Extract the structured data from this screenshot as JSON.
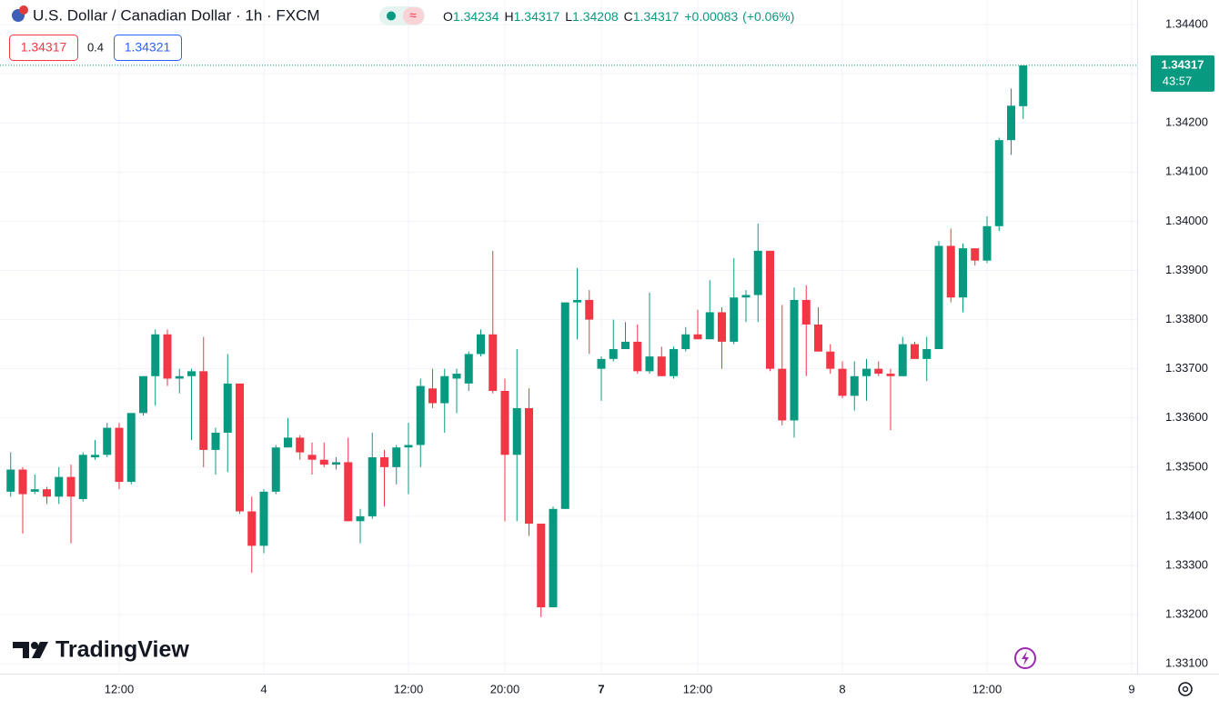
{
  "header": {
    "brand": "TradingView",
    "sell_price": 1.34317,
    "spread": 0.4,
    "buy_price": 1.34321,
    "ohlc_prefixes": {
      "open": "O",
      "high": "H",
      "low": "L",
      "close": "C"
    },
    "change": "+0.00083",
    "change_pct": "(+0.06%)",
    "countdown": "43:57"
  },
  "chart_data": {
    "type": "candlestick",
    "title": "U.S. Dollar / Canadian Dollar · 1h · FXCM",
    "up_color": "#089981",
    "down_color": "#f23645",
    "grid": true,
    "categories": [
      null,
      null,
      null,
      null,
      null,
      null,
      null,
      null,
      null,
      "12:00",
      null,
      null,
      null,
      null,
      null,
      null,
      null,
      null,
      null,
      null,
      null,
      "4",
      null,
      null,
      null,
      null,
      null,
      null,
      null,
      null,
      null,
      null,
      null,
      "12:00",
      null,
      null,
      null,
      null,
      null,
      null,
      null,
      "20:00",
      null,
      null,
      null,
      null,
      null,
      null,
      null,
      "7",
      null,
      null,
      null,
      null,
      null,
      null,
      null,
      "12:00",
      null,
      null,
      null,
      null,
      null,
      null,
      null,
      null,
      null,
      null,
      null,
      "8",
      null,
      null,
      null,
      null,
      null,
      null,
      null,
      null,
      null,
      null,
      null,
      "12:00",
      null,
      null,
      null,
      null,
      null,
      null,
      null,
      null,
      null,
      null,
      null,
      "9"
    ],
    "open": [
      1.3345,
      1.33495,
      1.3345,
      1.33455,
      1.3344,
      1.3348,
      1.33435,
      1.3352,
      1.33525,
      1.3358,
      1.3347,
      1.3361,
      1.33685,
      1.3377,
      1.3368,
      1.33685,
      1.33695,
      1.33535,
      1.3357,
      1.3367,
      1.3341,
      1.3334,
      1.3345,
      1.3354,
      1.3356,
      1.33525,
      1.33515,
      1.33505,
      1.3351,
      1.3339,
      1.334,
      1.3352,
      1.335,
      1.3354,
      1.33545,
      1.3366,
      1.3363,
      1.3368,
      1.3367,
      1.3373,
      1.3377,
      1.33655,
      1.33525,
      1.3362,
      1.33385,
      1.33215,
      1.33415,
      1.33835,
      1.3384,
      1.337,
      1.3372,
      1.3374,
      1.33755,
      1.33695,
      1.33725,
      1.33685,
      1.3374,
      1.3377,
      1.3376,
      1.33815,
      1.33755,
      1.33845,
      1.3385,
      1.3394,
      1.337,
      1.33595,
      1.3384,
      1.3379,
      1.33735,
      1.337,
      1.33645,
      1.33685,
      1.337,
      1.3369,
      1.33685,
      1.3375,
      1.3372,
      1.3374,
      1.3395,
      1.33845,
      1.33945,
      1.3392,
      1.3399,
      1.34165,
      1.34234,
      null,
      null,
      null,
      null,
      null,
      null,
      null,
      null,
      null
    ],
    "high": [
      1.3353,
      1.335,
      1.33485,
      1.3346,
      1.335,
      1.33505,
      1.3353,
      1.33555,
      1.3359,
      1.3359,
      1.3361,
      1.33685,
      1.3378,
      1.3378,
      1.337,
      1.337,
      1.33765,
      1.3358,
      1.3373,
      1.3367,
      1.3344,
      1.33455,
      1.33545,
      1.336,
      1.33565,
      1.3355,
      1.3355,
      1.3352,
      1.3356,
      1.33415,
      1.3357,
      1.33535,
      1.33545,
      1.3359,
      1.3368,
      1.337,
      1.337,
      1.337,
      1.33735,
      1.3378,
      1.3394,
      1.3368,
      1.3374,
      1.3366,
      1.33385,
      1.3342,
      1.33835,
      1.33905,
      1.3386,
      1.33725,
      1.338,
      1.33795,
      1.3379,
      1.33855,
      1.33745,
      1.33745,
      1.33785,
      1.3382,
      1.3388,
      1.33825,
      1.33925,
      1.3386,
      1.33995,
      1.3394,
      1.3383,
      1.33865,
      1.3387,
      1.33825,
      1.3375,
      1.33715,
      1.33715,
      1.3372,
      1.33715,
      1.337,
      1.33765,
      1.33755,
      1.33765,
      1.3396,
      1.33985,
      1.33955,
      1.33945,
      1.3401,
      1.3417,
      1.3427,
      1.34317,
      null,
      null,
      null,
      null,
      null,
      null,
      null,
      null,
      null
    ],
    "low": [
      1.3344,
      1.33365,
      1.33445,
      1.33425,
      1.33425,
      1.33345,
      1.3343,
      1.33515,
      1.3352,
      1.33455,
      1.33465,
      1.33605,
      1.33625,
      1.33665,
      1.3365,
      1.33555,
      1.335,
      1.33485,
      1.3349,
      1.33405,
      1.33285,
      1.33325,
      1.33445,
      1.3354,
      1.33515,
      1.33485,
      1.335,
      1.33495,
      1.3339,
      1.33345,
      1.33395,
      1.3342,
      1.33465,
      1.33445,
      1.335,
      1.3362,
      1.3357,
      1.3361,
      1.33655,
      1.33725,
      1.3365,
      1.3339,
      1.3339,
      1.3336,
      1.33195,
      1.33215,
      1.33415,
      1.3376,
      1.3373,
      1.33635,
      1.33715,
      1.3374,
      1.3369,
      1.3369,
      1.33685,
      1.3368,
      1.33735,
      1.3376,
      1.3376,
      1.337,
      1.3375,
      1.33795,
      1.33795,
      1.33695,
      1.33585,
      1.3356,
      1.33685,
      1.33735,
      1.3369,
      1.3364,
      1.33615,
      1.33635,
      1.33685,
      1.33575,
      1.33685,
      1.3372,
      1.33675,
      1.3374,
      1.33835,
      1.33815,
      1.3391,
      1.33915,
      1.3398,
      1.34135,
      1.34208,
      null,
      null,
      null,
      null,
      null,
      null,
      null,
      null,
      null
    ],
    "close": [
      1.33495,
      1.33445,
      1.33455,
      1.3344,
      1.3348,
      1.3344,
      1.33525,
      1.33525,
      1.3358,
      1.3347,
      1.3361,
      1.33685,
      1.3377,
      1.3368,
      1.33685,
      1.33695,
      1.33535,
      1.3357,
      1.3367,
      1.3341,
      1.3334,
      1.3345,
      1.3354,
      1.3356,
      1.3353,
      1.33515,
      1.33505,
      1.3351,
      1.3339,
      1.334,
      1.3352,
      1.335,
      1.3354,
      1.33545,
      1.33665,
      1.3363,
      1.33685,
      1.3369,
      1.3373,
      1.3377,
      1.33655,
      1.33525,
      1.3362,
      1.33385,
      1.33215,
      1.33415,
      1.33835,
      1.3384,
      1.338,
      1.3372,
      1.3374,
      1.33755,
      1.33695,
      1.33725,
      1.33685,
      1.3374,
      1.3377,
      1.3376,
      1.33815,
      1.33755,
      1.33845,
      1.3385,
      1.3394,
      1.337,
      1.33595,
      1.3384,
      1.3379,
      1.33735,
      1.337,
      1.33645,
      1.33685,
      1.337,
      1.3369,
      1.33685,
      1.3375,
      1.3372,
      1.3374,
      1.3395,
      1.33845,
      1.33945,
      1.3392,
      1.3399,
      1.34165,
      1.34235,
      1.34317,
      null,
      null,
      null,
      null,
      null,
      null,
      null,
      null,
      null
    ],
    "ylim": [
      1.3308,
      1.3445
    ],
    "yticks": [
      {
        "value": 1.344,
        "label": "1.34400"
      },
      {
        "value": 1.343,
        "label": "1.34300"
      },
      {
        "value": 1.342,
        "label": "1.34200"
      },
      {
        "value": 1.341,
        "label": "1.34100"
      },
      {
        "value": 1.34,
        "label": "1.34000"
      },
      {
        "value": 1.339,
        "label": "1.33900"
      },
      {
        "value": 1.338,
        "label": "1.33800"
      },
      {
        "value": 1.337,
        "label": "1.33700"
      },
      {
        "value": 1.336,
        "label": "1.33600"
      },
      {
        "value": 1.335,
        "label": "1.33500"
      },
      {
        "value": 1.334,
        "label": "1.33400"
      },
      {
        "value": 1.333,
        "label": "1.33300"
      },
      {
        "value": 1.332,
        "label": "1.33200"
      },
      {
        "value": 1.331,
        "label": "1.33100"
      }
    ]
  }
}
